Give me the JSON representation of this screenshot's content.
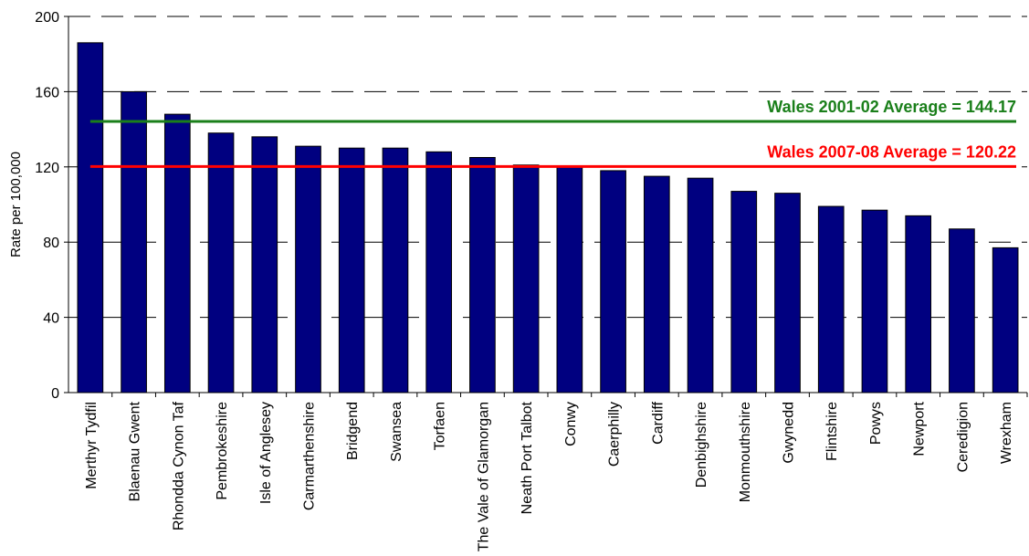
{
  "chart_data": {
    "type": "bar",
    "y_label": "Rate per 100,000",
    "categories": [
      "Merthyr Tydfil",
      "Blaenau Gwent",
      "Rhondda Cynon Taf",
      "Pembrokeshire",
      "Isle of Anglesey",
      "Carmarthenshire",
      "Bridgend",
      "Swansea",
      "Torfaen",
      "The Vale of Glamorgan",
      "Neath Port Talbot",
      "Conwy",
      "Caerphilly",
      "Cardiff",
      "Denbighshire",
      "Monmouthshire",
      "Gwynedd",
      "Flintshire",
      "Powys",
      "Newport",
      "Ceredigion",
      "Wrexham"
    ],
    "values": [
      186,
      160,
      148,
      138,
      136,
      131,
      130,
      130,
      128,
      125,
      121,
      120,
      118,
      115,
      114,
      107,
      106,
      99,
      97,
      94,
      87,
      77
    ],
    "color": "#000080",
    "ylim": [
      0,
      200
    ],
    "yticks": [
      0,
      40,
      80,
      120,
      160,
      200
    ],
    "grid": true,
    "reference_lines": [
      {
        "label": "Wales 2001-02 Average = 144.17",
        "value": 144.17,
        "color": "#1a7f1a"
      },
      {
        "label": "Wales 2007-08 Average = 120.22",
        "value": 120.22,
        "color": "#ff0000"
      }
    ]
  }
}
